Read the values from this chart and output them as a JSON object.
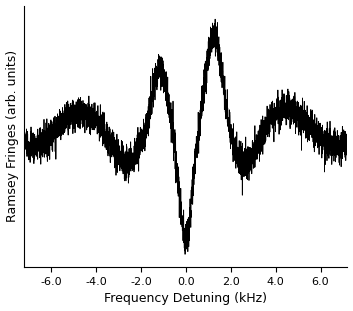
{
  "xlabel": "Frequency Detuning (kHz)",
  "ylabel": "Ramsey Fringes (arb. units)",
  "xlim": [
    -7.2,
    7.2
  ],
  "xticks": [
    -6.0,
    -4.0,
    -2.0,
    0.0,
    2.0,
    4.0,
    6.0
  ],
  "xtick_labels": [
    "-6.0",
    "-4.0",
    "-2.0",
    "0.0",
    "2.0",
    "4.0",
    "6.0"
  ],
  "line_color": "#000000",
  "background_color": "#ffffff",
  "fig_width": 3.53,
  "fig_height": 3.11,
  "dpi": 100,
  "noise_amplitude": 0.055,
  "seed": 7
}
